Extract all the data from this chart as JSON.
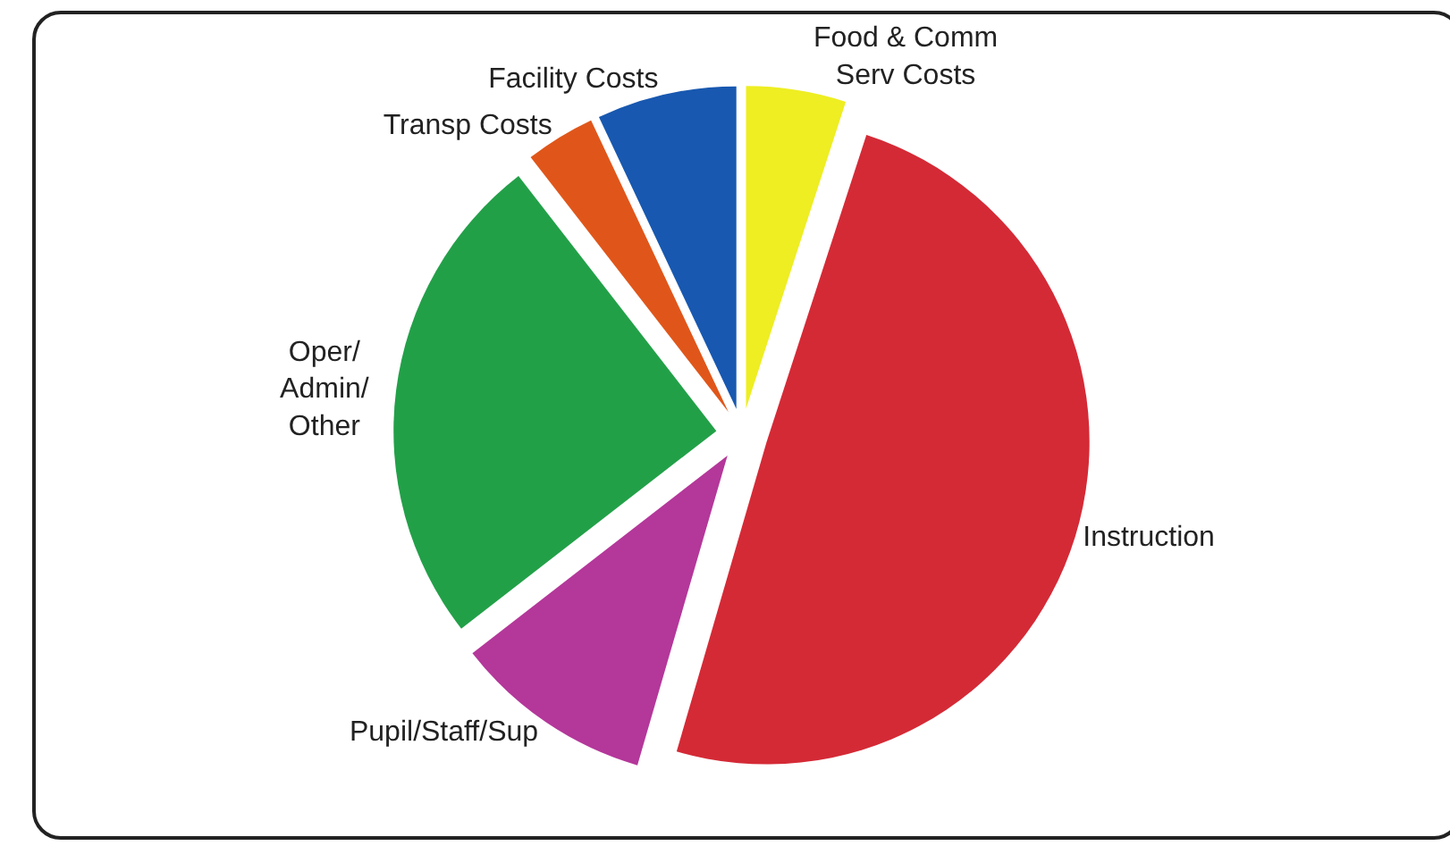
{
  "chart_data": {
    "type": "pie",
    "categories": [
      "Food & Comm\nServ Costs",
      "Instruction",
      "Pupil/Staff/Sup",
      "Oper/\nAdmin/\nOther",
      "Transp Costs",
      "Facility Costs"
    ],
    "values": [
      5,
      49.5,
      10,
      25,
      3.5,
      7
    ],
    "colors": [
      "#eeee22",
      "#d42a36",
      "#b4379a",
      "#22a048",
      "#e0561a",
      "#1858b0"
    ],
    "legend": false
  }
}
